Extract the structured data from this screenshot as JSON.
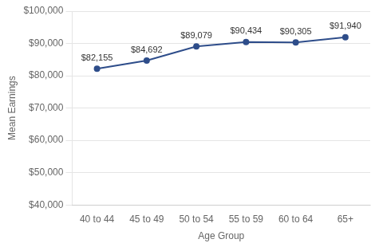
{
  "chart_data": {
    "type": "line",
    "categories": [
      "40 to 44",
      "45 to 49",
      "50 to 54",
      "55 to 59",
      "60 to 64",
      "65+"
    ],
    "values": [
      82155,
      84692,
      89079,
      90434,
      90305,
      91940
    ],
    "value_labels": [
      "$82,155",
      "$84,692",
      "$89,079",
      "$90,434",
      "$90,305",
      "$91,940"
    ],
    "data_labels": true,
    "color": "#2e4d8a",
    "marker": "circle",
    "xlabel": "Age Group",
    "ylabel": "Mean Earnings",
    "ylim": [
      40000,
      100000
    ],
    "yticks": [
      {
        "value": 40000,
        "label": "$40,000"
      },
      {
        "value": 50000,
        "label": "$50,000"
      },
      {
        "value": 60000,
        "label": "$60,000"
      },
      {
        "value": 70000,
        "label": "$70,000"
      },
      {
        "value": 80000,
        "label": "$80,000"
      },
      {
        "value": 90000,
        "label": "$90,000"
      },
      {
        "value": 100000,
        "label": "$100,000"
      }
    ],
    "grid": true
  }
}
